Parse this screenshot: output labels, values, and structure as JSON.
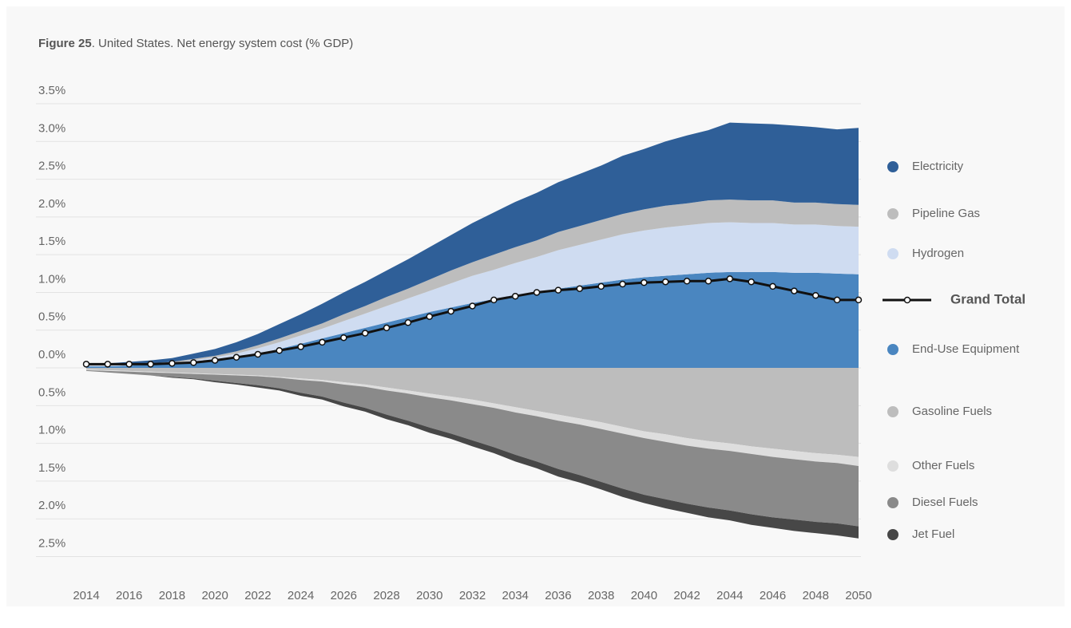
{
  "chart_data": {
    "type": "area",
    "figure_label": "Figure 25",
    "title": ". United States. Net energy system cost (% GDP)",
    "x": [
      2014,
      2015,
      2016,
      2017,
      2018,
      2019,
      2020,
      2021,
      2022,
      2023,
      2024,
      2025,
      2026,
      2027,
      2028,
      2029,
      2030,
      2031,
      2032,
      2033,
      2034,
      2035,
      2036,
      2037,
      2038,
      2039,
      2040,
      2041,
      2042,
      2043,
      2044,
      2045,
      2046,
      2047,
      2048,
      2049,
      2050
    ],
    "xlim": [
      2014,
      2050
    ],
    "xticks": [
      2014,
      2016,
      2018,
      2020,
      2022,
      2024,
      2026,
      2028,
      2030,
      2032,
      2034,
      2036,
      2038,
      2040,
      2042,
      2044,
      2046,
      2048,
      2050
    ],
    "ylim": [
      -2.5,
      3.5
    ],
    "yticks": [
      {
        "value": 3.5,
        "label": "3.5%"
      },
      {
        "value": 3.0,
        "label": "3.0%"
      },
      {
        "value": 2.5,
        "label": "2.5%"
      },
      {
        "value": 2.0,
        "label": "2.0%"
      },
      {
        "value": 1.5,
        "label": "1.5%"
      },
      {
        "value": 1.0,
        "label": "1.0%"
      },
      {
        "value": 0.5,
        "label": "0.5%"
      },
      {
        "value": 0,
        "label": "0.0%"
      },
      {
        "value": -0.5,
        "label": "0.5%"
      },
      {
        "value": -1.0,
        "label": "1.0%"
      },
      {
        "value": -1.5,
        "label": "1.5%"
      },
      {
        "value": -2.0,
        "label": "2.0%"
      },
      {
        "value": -2.5,
        "label": "2.5%"
      }
    ],
    "grid": true,
    "series": [
      {
        "name": "Electricity",
        "color": "#2f5f98",
        "values": [
          0.01,
          0.02,
          0.03,
          0.04,
          0.05,
          0.07,
          0.09,
          0.12,
          0.15,
          0.19,
          0.22,
          0.26,
          0.29,
          0.32,
          0.35,
          0.39,
          0.43,
          0.47,
          0.52,
          0.56,
          0.6,
          0.63,
          0.66,
          0.69,
          0.72,
          0.77,
          0.8,
          0.85,
          0.9,
          0.93,
          1.02,
          1.02,
          1.01,
          1.02,
          1.0,
          0.99,
          1.02
        ]
      },
      {
        "name": "Pipeline Gas",
        "color": "#bdbdbd",
        "values": [
          0.01,
          0.01,
          0.01,
          0.01,
          0.01,
          0.02,
          0.02,
          0.03,
          0.04,
          0.05,
          0.06,
          0.07,
          0.09,
          0.1,
          0.12,
          0.13,
          0.15,
          0.17,
          0.18,
          0.2,
          0.21,
          0.22,
          0.24,
          0.25,
          0.26,
          0.27,
          0.28,
          0.29,
          0.29,
          0.3,
          0.3,
          0.3,
          0.3,
          0.29,
          0.29,
          0.29,
          0.29
        ]
      },
      {
        "name": "Hydrogen",
        "color": "#cfdcf1",
        "values": [
          0.01,
          0.01,
          0.01,
          0.01,
          0.02,
          0.03,
          0.04,
          0.05,
          0.07,
          0.09,
          0.11,
          0.13,
          0.16,
          0.19,
          0.22,
          0.25,
          0.28,
          0.32,
          0.36,
          0.39,
          0.43,
          0.47,
          0.51,
          0.54,
          0.57,
          0.6,
          0.62,
          0.64,
          0.65,
          0.66,
          0.66,
          0.65,
          0.65,
          0.64,
          0.64,
          0.63,
          0.63
        ]
      },
      {
        "name": "Grand Total",
        "type": "line",
        "color": "#111111",
        "values": [
          0.05,
          0.05,
          0.05,
          0.05,
          0.06,
          0.07,
          0.1,
          0.14,
          0.18,
          0.23,
          0.28,
          0.34,
          0.4,
          0.46,
          0.53,
          0.6,
          0.68,
          0.75,
          0.82,
          0.9,
          0.95,
          1.0,
          1.03,
          1.05,
          1.08,
          1.11,
          1.13,
          1.14,
          1.15,
          1.15,
          1.18,
          1.14,
          1.08,
          1.02,
          0.96,
          0.9,
          0.9
        ]
      },
      {
        "name": "End-Use Equipment",
        "color": "#4a86c0",
        "values": [
          0.02,
          0.02,
          0.03,
          0.04,
          0.05,
          0.07,
          0.1,
          0.14,
          0.19,
          0.25,
          0.32,
          0.39,
          0.46,
          0.53,
          0.6,
          0.67,
          0.74,
          0.8,
          0.86,
          0.91,
          0.96,
          1.0,
          1.05,
          1.09,
          1.13,
          1.17,
          1.2,
          1.22,
          1.24,
          1.26,
          1.27,
          1.27,
          1.27,
          1.26,
          1.26,
          1.25,
          1.24
        ]
      },
      {
        "name": "Gasoline Fuels",
        "color": "#bdbdbd",
        "values": [
          -0.02,
          -0.03,
          -0.04,
          -0.05,
          -0.06,
          -0.07,
          -0.08,
          -0.09,
          -0.1,
          -0.12,
          -0.14,
          -0.16,
          -0.19,
          -0.22,
          -0.26,
          -0.3,
          -0.34,
          -0.38,
          -0.42,
          -0.47,
          -0.52,
          -0.57,
          -0.62,
          -0.67,
          -0.72,
          -0.78,
          -0.84,
          -0.88,
          -0.93,
          -0.97,
          -1.0,
          -1.04,
          -1.07,
          -1.1,
          -1.13,
          -1.15,
          -1.18
        ]
      },
      {
        "name": "Other Fuels",
        "color": "#dedede",
        "values": [
          -0.01,
          -0.01,
          -0.01,
          -0.01,
          -0.01,
          -0.01,
          -0.01,
          -0.01,
          -0.01,
          -0.01,
          -0.02,
          -0.02,
          -0.03,
          -0.03,
          -0.04,
          -0.04,
          -0.05,
          -0.05,
          -0.06,
          -0.06,
          -0.07,
          -0.07,
          -0.08,
          -0.08,
          -0.09,
          -0.09,
          -0.09,
          -0.1,
          -0.1,
          -0.1,
          -0.1,
          -0.1,
          -0.11,
          -0.11,
          -0.11,
          -0.11,
          -0.12
        ]
      },
      {
        "name": "Diesel Fuels",
        "color": "#8a8a8a",
        "values": [
          -0.01,
          -0.02,
          -0.03,
          -0.04,
          -0.05,
          -0.06,
          -0.08,
          -0.1,
          -0.12,
          -0.14,
          -0.17,
          -0.2,
          -0.24,
          -0.28,
          -0.32,
          -0.36,
          -0.4,
          -0.44,
          -0.48,
          -0.52,
          -0.56,
          -0.6,
          -0.64,
          -0.67,
          -0.7,
          -0.73,
          -0.75,
          -0.76,
          -0.77,
          -0.78,
          -0.79,
          -0.8,
          -0.8,
          -0.8,
          -0.8,
          -0.8,
          -0.8
        ]
      },
      {
        "name": "Jet Fuel",
        "color": "#474747",
        "values": [
          0,
          0,
          0,
          0,
          -0.01,
          -0.01,
          -0.02,
          -0.02,
          -0.03,
          -0.03,
          -0.04,
          -0.04,
          -0.05,
          -0.05,
          -0.06,
          -0.06,
          -0.07,
          -0.07,
          -0.08,
          -0.08,
          -0.09,
          -0.09,
          -0.1,
          -0.1,
          -0.1,
          -0.11,
          -0.11,
          -0.12,
          -0.12,
          -0.13,
          -0.13,
          -0.14,
          -0.14,
          -0.15,
          -0.15,
          -0.16,
          -0.16
        ]
      }
    ]
  }
}
